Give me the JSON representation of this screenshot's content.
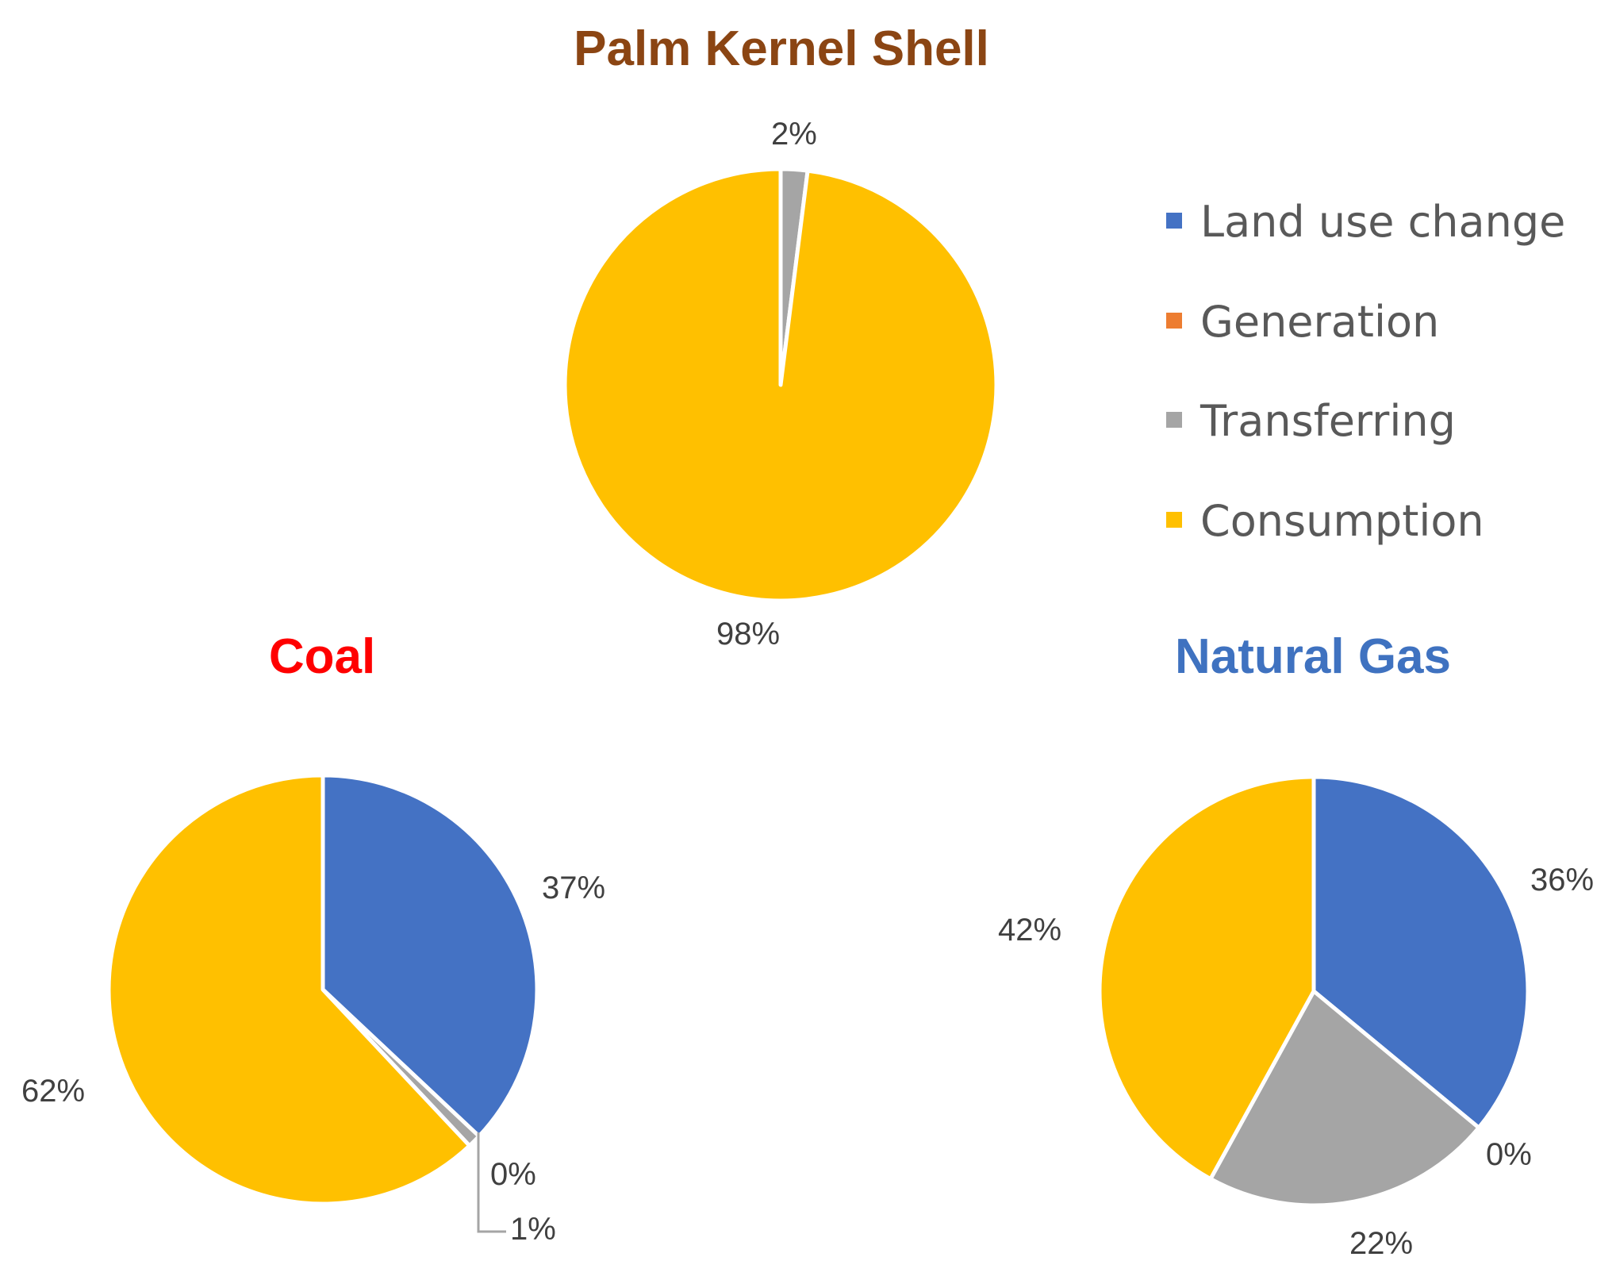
{
  "chart_data": [
    {
      "type": "pie",
      "title": "Palm Kernel Shell",
      "title_color": "#8B4513",
      "slices": [
        {
          "name": "Land use change",
          "value": 0,
          "label": ""
        },
        {
          "name": "Generation",
          "value": 0,
          "label": ""
        },
        {
          "name": "Transferring",
          "value": 2,
          "label": "2%"
        },
        {
          "name": "Consumption",
          "value": 98,
          "label": "98%"
        }
      ]
    },
    {
      "type": "pie",
      "title": "Coal",
      "title_color": "#FF0000",
      "slices": [
        {
          "name": "Land use change",
          "value": 37,
          "label": "37%"
        },
        {
          "name": "Generation",
          "value": 0,
          "label": "0%"
        },
        {
          "name": "Transferring",
          "value": 1,
          "label": "1%"
        },
        {
          "name": "Consumption",
          "value": 62,
          "label": "62%"
        }
      ]
    },
    {
      "type": "pie",
      "title": "Natural Gas",
      "title_color": "#3F72C0",
      "slices": [
        {
          "name": "Land use change",
          "value": 36,
          "label": "36%"
        },
        {
          "name": "Generation",
          "value": 0,
          "label": "0%"
        },
        {
          "name": "Transferring",
          "value": 22,
          "label": "22%"
        },
        {
          "name": "Consumption",
          "value": 42,
          "label": "42%"
        }
      ]
    }
  ],
  "legend": {
    "placement": "right",
    "items": [
      {
        "name": "Land use change",
        "color": "#4472C4"
      },
      {
        "name": "Generation",
        "color": "#ED7D31"
      },
      {
        "name": "Transferring",
        "color": "#A5A5A5"
      },
      {
        "name": "Consumption",
        "color": "#FFC000"
      }
    ]
  }
}
